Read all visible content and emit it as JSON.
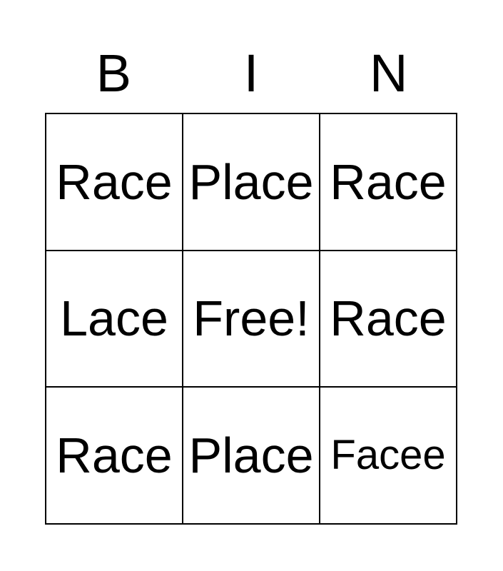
{
  "card": {
    "title_letters": [
      "B",
      "I",
      "N"
    ],
    "grid": {
      "rows": [
        {
          "cells": [
            {
              "text": "Race"
            },
            {
              "text": "Place"
            },
            {
              "text": "Race"
            }
          ]
        },
        {
          "cells": [
            {
              "text": "Lace"
            },
            {
              "text": "Free!"
            },
            {
              "text": "Race"
            }
          ]
        },
        {
          "cells": [
            {
              "text": "Race"
            },
            {
              "text": "Place"
            },
            {
              "text": "Facee"
            }
          ]
        }
      ]
    },
    "colors": {
      "background": "#ffffff",
      "border": "#000000",
      "text": "#000000"
    }
  }
}
